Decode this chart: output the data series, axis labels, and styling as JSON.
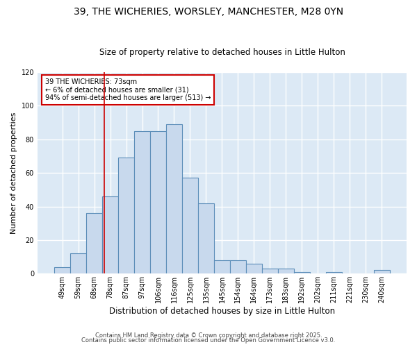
{
  "title1": "39, THE WICHERIES, WORSLEY, MANCHESTER, M28 0YN",
  "title2": "Size of property relative to detached houses in Little Hulton",
  "xlabel": "Distribution of detached houses by size in Little Hulton",
  "ylabel": "Number of detached properties",
  "categories": [
    "49sqm",
    "59sqm",
    "68sqm",
    "78sqm",
    "87sqm",
    "97sqm",
    "106sqm",
    "116sqm",
    "125sqm",
    "135sqm",
    "145sqm",
    "154sqm",
    "164sqm",
    "173sqm",
    "183sqm",
    "192sqm",
    "202sqm",
    "211sqm",
    "221sqm",
    "230sqm",
    "240sqm"
  ],
  "values": [
    4,
    12,
    36,
    46,
    69,
    85,
    85,
    89,
    57,
    42,
    8,
    8,
    6,
    3,
    3,
    1,
    0,
    1,
    0,
    0,
    2
  ],
  "bar_color": "#c8d9ed",
  "bar_edge_color": "#5b8db8",
  "plot_bg_color": "#dce9f5",
  "fig_bg_color": "#ffffff",
  "grid_color": "#ffffff",
  "red_line_x": 2.65,
  "annotation_text": "39 THE WICHERIES: 73sqm\n← 6% of detached houses are smaller (31)\n94% of semi-detached houses are larger (513) →",
  "annotation_box_color": "#ffffff",
  "annotation_box_edge": "#cc0000",
  "footer1": "Contains HM Land Registry data © Crown copyright and database right 2025.",
  "footer2": "Contains public sector information licensed under the Open Government Licence v3.0.",
  "ylim": [
    0,
    120
  ],
  "title1_fontsize": 10,
  "title2_fontsize": 8.5,
  "xlabel_fontsize": 8.5,
  "ylabel_fontsize": 8,
  "tick_fontsize": 7,
  "annotation_fontsize": 7,
  "footer_fontsize": 6
}
